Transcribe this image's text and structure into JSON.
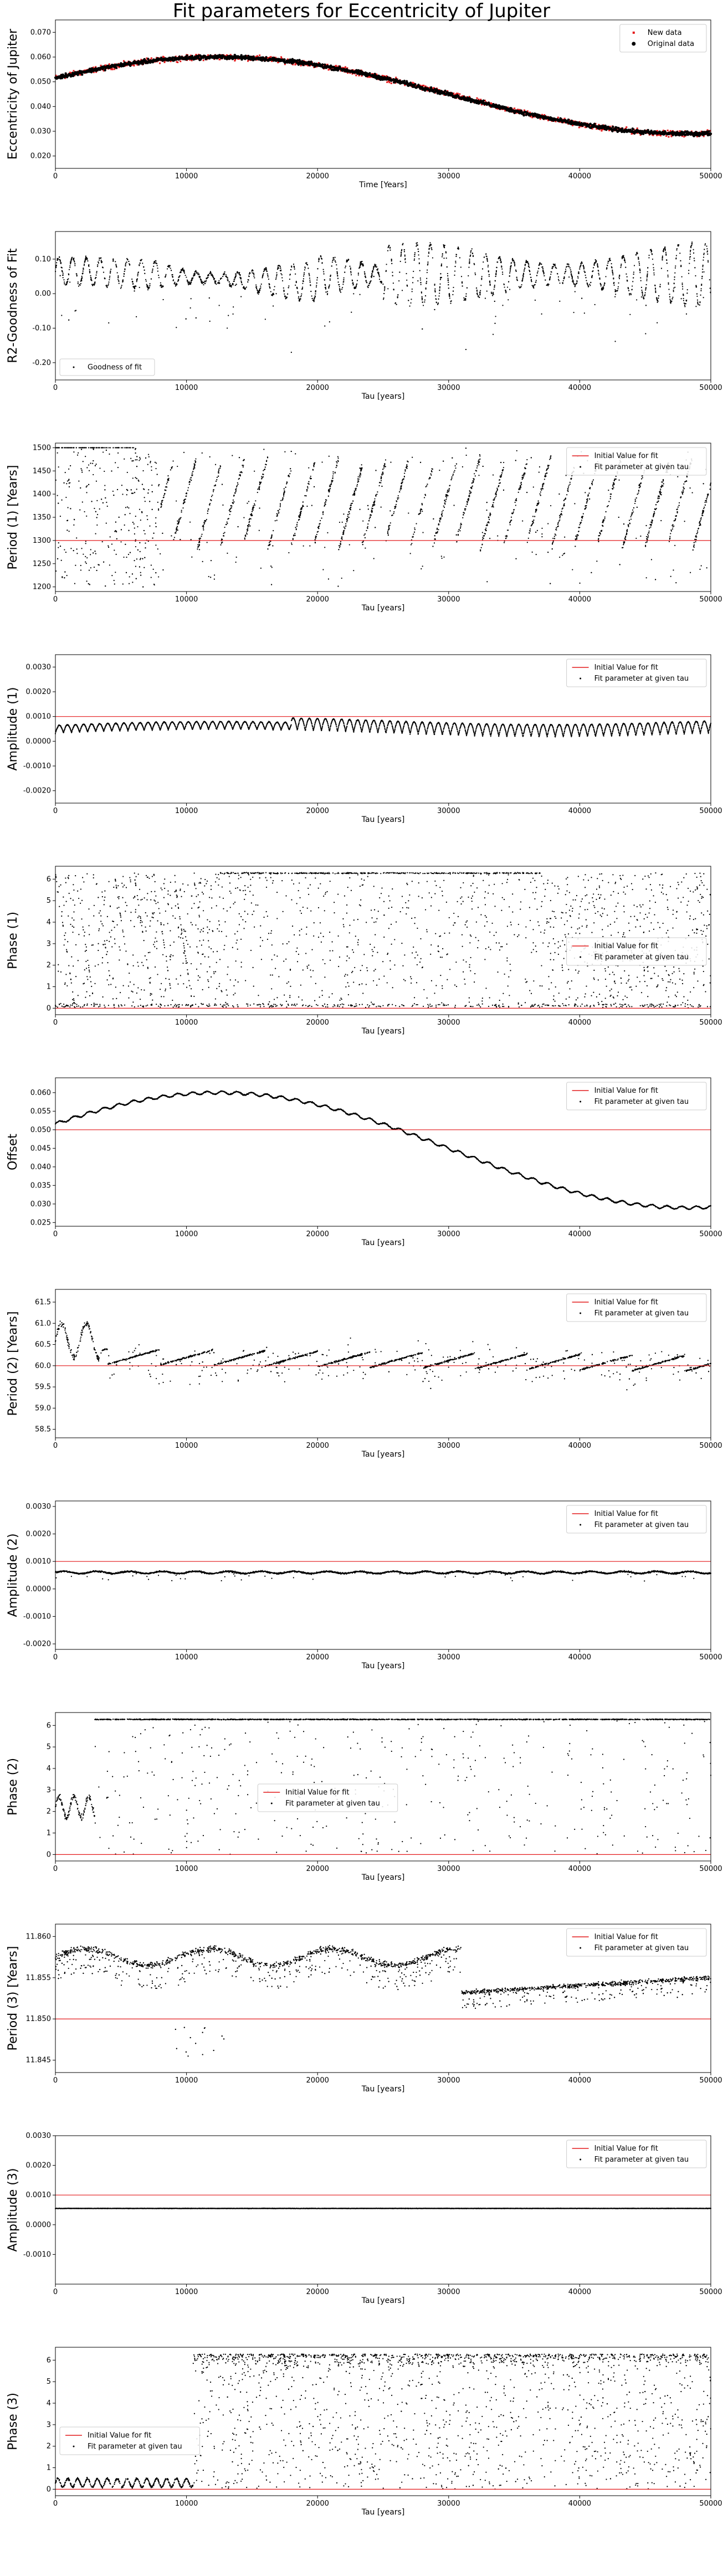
{
  "figure": {
    "title": "Fit parameters for Eccentricity of Jupiter"
  },
  "chart_data": [
    {
      "type": "scatter",
      "title": "",
      "xlabel": "Time [Years]",
      "ylabel": "Eccentricity of Jupiter",
      "xlim": [
        0,
        50000
      ],
      "ylim": [
        0.015,
        0.075
      ],
      "xticks": [
        0,
        10000,
        20000,
        30000,
        40000,
        50000
      ],
      "yticks": [
        0.02,
        0.03,
        0.04,
        0.05,
        0.06,
        0.07
      ],
      "legend": {
        "position": "top-right",
        "entries": [
          "New data",
          "Original data"
        ]
      },
      "series": [
        {
          "name": "New data",
          "marker": "red-cross",
          "color": "#e41a1c",
          "model": "0.0445 + 0.0155*sin(2*pi*(x+5400)/71500)",
          "noise": 0.0011
        },
        {
          "name": "Original data",
          "marker": "black-dot",
          "color": "#000000",
          "model": "0.0445 + 0.0155*sin(2*pi*(x+5400)/71500)",
          "noise": 0.0009
        }
      ]
    },
    {
      "type": "scatter",
      "title": "",
      "xlabel": "Tau [years]",
      "ylabel": "R2-Goodness of Fit",
      "xlim": [
        0,
        50000
      ],
      "ylim": [
        -0.25,
        0.18
      ],
      "xticks": [
        0,
        10000,
        20000,
        30000,
        40000,
        50000
      ],
      "yticks": [
        -0.2,
        -0.1,
        0.0,
        0.1
      ],
      "legend": {
        "position": "lower-left",
        "entries": [
          "Goodness of fit"
        ]
      },
      "series": [
        {
          "name": "Goodness of fit",
          "marker": "black-dot",
          "color": "#000000",
          "model": "oscillating band, centre 0.04 to 0.07, amplitude 0.03 to 0.09, period about 1000 years",
          "noise": 0.01
        }
      ]
    },
    {
      "type": "scatter",
      "title": "",
      "xlabel": "Tau [years]",
      "ylabel": "Period (1) [Years]",
      "xlim": [
        0,
        50000
      ],
      "ylim": [
        1190,
        1510
      ],
      "xticks": [
        0,
        10000,
        20000,
        30000,
        40000,
        50000
      ],
      "yticks": [
        1200,
        1250,
        1300,
        1350,
        1400,
        1450,
        1500
      ],
      "legend": {
        "position": "top-right",
        "entries": [
          "Initial Value for fit",
          "Fit parameter at given tau"
        ]
      },
      "initial_value": 1300,
      "series": [
        {
          "name": "Fit parameter at given tau",
          "marker": "black-dot",
          "color": "#000000",
          "model": "rising diagonal streaks between 1200 and 1500, cluster near 1300 to 1400",
          "noise": 0
        }
      ]
    },
    {
      "type": "scatter",
      "title": "",
      "xlabel": "Tau [years]",
      "ylabel": "Amplitude (1)",
      "xlim": [
        0,
        50000
      ],
      "ylim": [
        -0.0025,
        0.0035
      ],
      "xticks": [
        0,
        10000,
        20000,
        30000,
        40000,
        50000
      ],
      "yticks": [
        -0.002,
        -0.001,
        0.0,
        0.001,
        0.002,
        0.003
      ],
      "legend": {
        "position": "top-right",
        "entries": [
          "Initial Value for fit",
          "Fit parameter at given tau"
        ]
      },
      "initial_value": 0.001,
      "series": [
        {
          "name": "Fit parameter at given tau",
          "marker": "black-dot",
          "color": "#000000",
          "model": "scalloped band between 0.0 and 0.001, period about 1200 years",
          "noise": 3e-05
        }
      ]
    },
    {
      "type": "scatter",
      "title": "",
      "xlabel": "Tau [years]",
      "ylabel": "Phase (1)",
      "xlim": [
        0,
        50000
      ],
      "ylim": [
        -0.3,
        6.6
      ],
      "xticks": [
        0,
        10000,
        20000,
        30000,
        40000,
        50000
      ],
      "yticks": [
        0,
        1,
        2,
        3,
        4,
        5,
        6
      ],
      "legend": {
        "position": "center-right",
        "entries": [
          "Initial Value for fit",
          "Fit parameter at given tau"
        ]
      },
      "initial_value": 0,
      "series": [
        {
          "name": "Fit parameter at given tau",
          "marker": "black-dot",
          "color": "#000000",
          "model": "phase wraps 0 to 2pi, line near 6.28, scattered points",
          "noise": 0
        }
      ]
    },
    {
      "type": "scatter",
      "title": "",
      "xlabel": "Tau [years]",
      "ylabel": "Offset",
      "xlim": [
        0,
        50000
      ],
      "ylim": [
        0.024,
        0.064
      ],
      "xticks": [
        0,
        10000,
        20000,
        30000,
        40000,
        50000
      ],
      "yticks": [
        0.025,
        0.03,
        0.035,
        0.04,
        0.045,
        0.05,
        0.055,
        0.06
      ],
      "legend": {
        "position": "top-right",
        "entries": [
          "Initial Value for fit",
          "Fit parameter at given tau"
        ]
      },
      "initial_value": 0.05,
      "series": [
        {
          "name": "Fit parameter at given tau",
          "marker": "black-dot",
          "color": "#000000",
          "model": "0.0445 + 0.0155*sin(2*pi*(x+5400)/71500)",
          "noise": 0.0003
        }
      ]
    },
    {
      "type": "scatter",
      "title": "",
      "xlabel": "Tau [years]",
      "ylabel": "Period (2) [Years]",
      "xlim": [
        0,
        50000
      ],
      "ylim": [
        58.3,
        61.8
      ],
      "xticks": [
        0,
        10000,
        20000,
        30000,
        40000,
        50000
      ],
      "yticks": [
        58.5,
        59.0,
        59.5,
        60.0,
        60.5,
        61.0,
        61.5
      ],
      "legend": {
        "position": "top-right",
        "entries": [
          "Initial Value for fit",
          "Fit parameter at given tau"
        ]
      },
      "initial_value": 60.0,
      "series": [
        {
          "name": "Fit parameter at given tau",
          "marker": "black-dot",
          "color": "#000000",
          "model": "rising streaks from 60.0 to 60.6 with vertical spikes every 4000 years",
          "noise": 0
        }
      ]
    },
    {
      "type": "scatter",
      "title": "",
      "xlabel": "Tau [years]",
      "ylabel": "Amplitude (2)",
      "xlim": [
        0,
        50000
      ],
      "ylim": [
        -0.0022,
        0.0032
      ],
      "xticks": [
        0,
        10000,
        20000,
        30000,
        40000,
        50000
      ],
      "yticks": [
        -0.002,
        -0.001,
        0.0,
        0.001,
        0.002,
        0.003
      ],
      "legend": {
        "position": "top-right",
        "entries": [
          "Initial Value for fit",
          "Fit parameter at given tau"
        ]
      },
      "initial_value": 0.001,
      "series": [
        {
          "name": "Fit parameter at given tau",
          "marker": "black-dot",
          "color": "#000000",
          "model": "flat band near 0.0006",
          "noise": 3e-05
        }
      ]
    },
    {
      "type": "scatter",
      "title": "",
      "xlabel": "Tau [years]",
      "ylabel": "Phase (2)",
      "xlim": [
        0,
        50000
      ],
      "ylim": [
        -0.3,
        6.6
      ],
      "xticks": [
        0,
        10000,
        20000,
        30000,
        40000,
        50000
      ],
      "yticks": [
        0,
        1,
        2,
        3,
        4,
        5,
        6
      ],
      "legend": {
        "position": "center",
        "entries": [
          "Initial Value for fit",
          "Fit parameter at given tau"
        ]
      },
      "initial_value": 0,
      "series": [
        {
          "name": "Fit parameter at given tau",
          "marker": "black-dot",
          "color": "#000000",
          "model": "wavy band 1.5 to 3 before 3000, then line near 6.28 with sparse points",
          "noise": 0
        }
      ]
    },
    {
      "type": "scatter",
      "title": "",
      "xlabel": "Tau [years]",
      "ylabel": "Period (3) [Years]",
      "xlim": [
        0,
        50000
      ],
      "ylim": [
        11.8435,
        11.8615
      ],
      "xticks": [
        0,
        10000,
        20000,
        30000,
        40000,
        50000
      ],
      "yticks": [
        11.845,
        11.85,
        11.855,
        11.86
      ],
      "legend": {
        "position": "top-right",
        "entries": [
          "Initial Value for fit",
          "Fit parameter at given tau"
        ]
      },
      "initial_value": 11.85,
      "series": [
        {
          "name": "Fit parameter at given tau",
          "marker": "black-dot",
          "color": "#000000",
          "model": "band near 11.8575 with downward spikes to 11.854, shifts to 11.853 to 11.8545 after 31000",
          "noise": 0
        }
      ]
    },
    {
      "type": "scatter",
      "title": "",
      "xlabel": "Tau [years]",
      "ylabel": "Amplitude (3)",
      "xlim": [
        0,
        50000
      ],
      "ylim": [
        -0.002,
        0.003
      ],
      "xticks": [
        0,
        10000,
        20000,
        30000,
        40000,
        50000
      ],
      "yticks": [
        -0.001,
        0.0,
        0.001,
        0.002,
        0.003
      ],
      "legend": {
        "position": "top-right",
        "entries": [
          "Initial Value for fit",
          "Fit parameter at given tau"
        ]
      },
      "initial_value": 0.001,
      "series": [
        {
          "name": "Fit parameter at given tau",
          "marker": "black-dot",
          "color": "#000000",
          "model": "flat line near 0.00055",
          "noise": 1e-05
        }
      ]
    },
    {
      "type": "scatter",
      "title": "",
      "xlabel": "Tau [years]",
      "ylabel": "Phase (3)",
      "xlim": [
        0,
        50000
      ],
      "ylim": [
        -0.3,
        6.6
      ],
      "xticks": [
        0,
        10000,
        20000,
        30000,
        40000,
        50000
      ],
      "yticks": [
        0,
        1,
        2,
        3,
        4,
        5,
        6
      ],
      "legend": {
        "position": "center-left",
        "entries": [
          "Initial Value for fit",
          "Fit parameter at given tau"
        ]
      },
      "initial_value": 0,
      "series": [
        {
          "name": "Fit parameter at given tau",
          "marker": "black-dot",
          "color": "#000000",
          "model": "small oscillation near 0.3 before 10000, then dense comb from 6.28 downward",
          "noise": 0
        }
      ]
    }
  ],
  "colors": {
    "initial_value_line": "#e41a1c",
    "points": "#000000",
    "new_data": "#e41a1c"
  }
}
